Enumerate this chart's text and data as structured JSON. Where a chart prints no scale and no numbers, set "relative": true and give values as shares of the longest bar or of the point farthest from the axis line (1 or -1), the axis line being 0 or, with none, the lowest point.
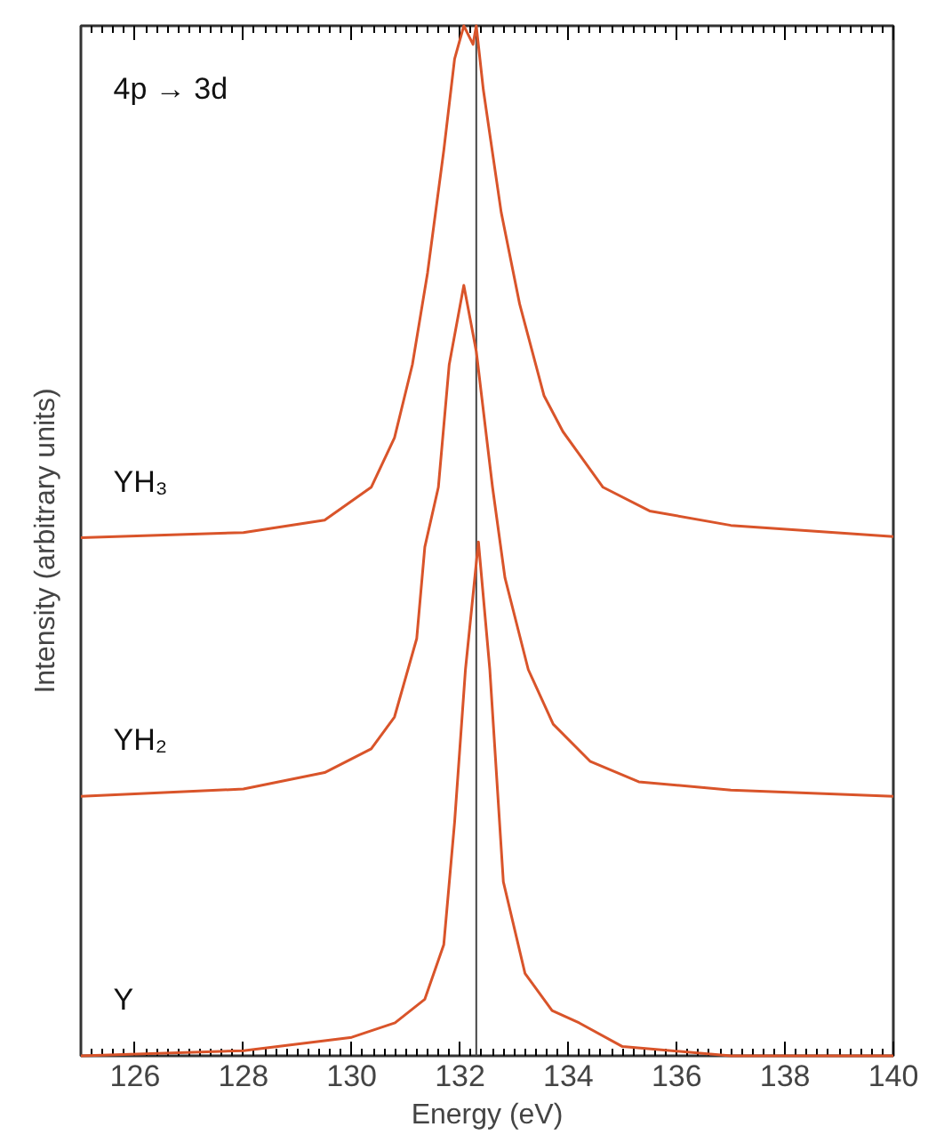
{
  "chart_data": {
    "type": "line",
    "relative": true,
    "xlabel": "Energy (eV)",
    "ylabel": "Intensity (arbitrary units)",
    "xlim": [
      125,
      140
    ],
    "xticks": [
      126,
      128,
      130,
      132,
      134,
      136,
      138,
      140
    ],
    "annotations": [
      "4p → 3d"
    ],
    "ref_lines": [
      {
        "axis": "x",
        "value": 132.3,
        "color": "#444444"
      }
    ],
    "series": [
      {
        "name": "YH₃",
        "color": "#d9542a",
        "x": [
          125,
          128,
          129.5,
          130.36,
          130.79,
          131.12,
          131.4,
          131.7,
          131.9,
          132.07,
          132.24,
          132.3,
          132.43,
          132.76,
          133.1,
          133.55,
          133.9,
          134.64,
          135.5,
          137,
          140
        ],
        "values": [
          0.503,
          0.508,
          0.52,
          0.552,
          0.6,
          0.671,
          0.76,
          0.879,
          0.968,
          1.0,
          0.982,
          1.0,
          0.938,
          0.819,
          0.73,
          0.641,
          0.606,
          0.552,
          0.529,
          0.515,
          0.504
        ]
      },
      {
        "name": "YH₂",
        "color": "#d9542a",
        "x": [
          125,
          128,
          129.5,
          130.36,
          130.79,
          131.2,
          131.35,
          131.6,
          131.8,
          132.07,
          132.3,
          132.6,
          132.83,
          133.26,
          133.72,
          134.4,
          135.3,
          137,
          140
        ],
        "values": [
          0.252,
          0.259,
          0.275,
          0.298,
          0.329,
          0.405,
          0.494,
          0.552,
          0.671,
          0.748,
          0.684,
          0.552,
          0.464,
          0.375,
          0.322,
          0.286,
          0.266,
          0.258,
          0.252
        ]
      },
      {
        "name": "Y",
        "color": "#d9542a",
        "x": [
          125,
          128,
          130,
          130.8,
          131.35,
          131.7,
          131.9,
          132.1,
          132.34,
          132.55,
          132.8,
          133.2,
          133.7,
          134.2,
          135,
          137,
          140
        ],
        "values": [
          0.0,
          0.005,
          0.018,
          0.032,
          0.055,
          0.108,
          0.227,
          0.375,
          0.499,
          0.375,
          0.169,
          0.08,
          0.044,
          0.032,
          0.009,
          0.0,
          0.0
        ]
      }
    ]
  }
}
